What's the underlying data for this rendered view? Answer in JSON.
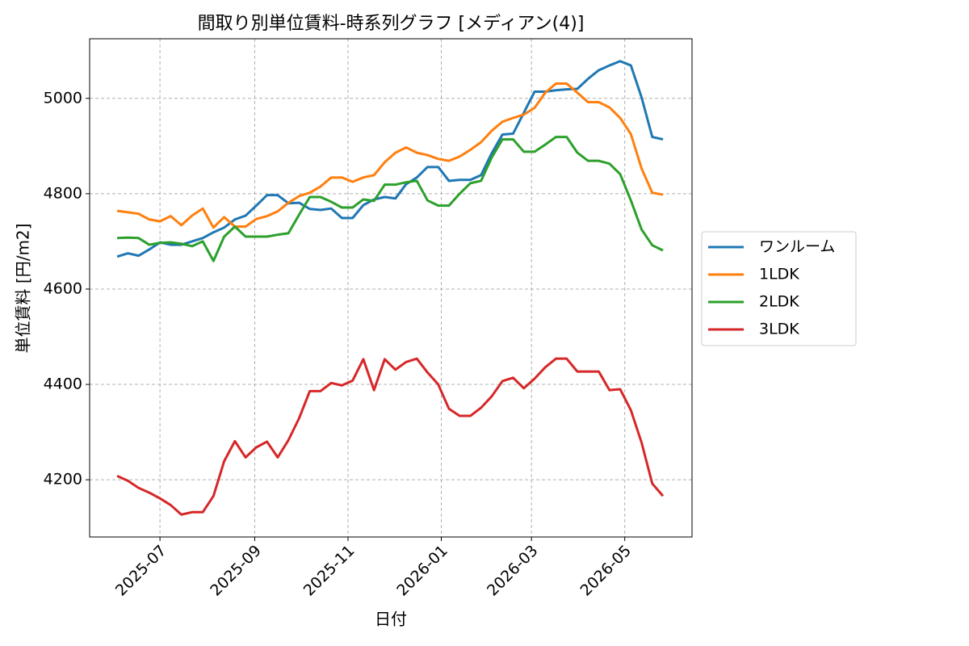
{
  "chart_data": {
    "type": "line",
    "title": "間取り別単位賃料-時系列グラフ [メディアン(4)]",
    "xlabel": "日付",
    "ylabel": "単位賃料 [円/m2]",
    "x": [
      "2025-06-03",
      "2025-06-10",
      "2025-06-17",
      "2025-06-24",
      "2025-07-01",
      "2025-07-08",
      "2025-07-15",
      "2025-07-22",
      "2025-07-29",
      "2025-08-05",
      "2025-08-12",
      "2025-08-19",
      "2025-08-26",
      "2025-09-02",
      "2025-09-09",
      "2025-09-16",
      "2025-09-23",
      "2025-09-30",
      "2025-10-07",
      "2025-10-14",
      "2025-10-21",
      "2025-10-28",
      "2025-11-04",
      "2025-11-11",
      "2025-11-18",
      "2025-11-25",
      "2025-12-02",
      "2025-12-09",
      "2025-12-16",
      "2025-12-23",
      "2025-12-30",
      "2026-01-06",
      "2026-01-13",
      "2026-01-20",
      "2026-01-27",
      "2026-02-03",
      "2026-02-10",
      "2026-02-17",
      "2026-02-24",
      "2026-03-03",
      "2026-03-10",
      "2026-03-17",
      "2026-03-24",
      "2026-03-31",
      "2026-04-07",
      "2026-04-14",
      "2026-04-21",
      "2026-04-28",
      "2026-05-05",
      "2026-05-12",
      "2026-05-19",
      "2026-05-26"
    ],
    "series": [
      {
        "name": "ワンルーム",
        "color": "#1f77b4",
        "values": [
          4668,
          4675,
          4670,
          4683,
          4698,
          4693,
          4693,
          4700,
          4707,
          4719,
          4729,
          4746,
          4754,
          4775,
          4797,
          4797,
          4780,
          4781,
          4768,
          4766,
          4769,
          4749,
          4749,
          4776,
          4788,
          4793,
          4790,
          4820,
          4834,
          4856,
          4856,
          4827,
          4829,
          4829,
          4839,
          4885,
          4924,
          4926,
          4970,
          5014,
          5014,
          5017,
          5019,
          5020,
          5041,
          5059,
          5069,
          5078,
          5069,
          5002,
          4919,
          4914
        ]
      },
      {
        "name": "1LDK",
        "color": "#ff7f0e",
        "values": [
          4764,
          4761,
          4758,
          4746,
          4742,
          4753,
          4734,
          4754,
          4769,
          4729,
          4751,
          4731,
          4731,
          4747,
          4753,
          4763,
          4781,
          4795,
          4802,
          4815,
          4834,
          4834,
          4825,
          4834,
          4839,
          4866,
          4886,
          4897,
          4886,
          4881,
          4873,
          4869,
          4878,
          4892,
          4908,
          4932,
          4951,
          4959,
          4966,
          4980,
          5012,
          5031,
          5031,
          5012,
          4992,
          4992,
          4981,
          4959,
          4925,
          4853,
          4802,
          4798
        ]
      },
      {
        "name": "2LDK",
        "color": "#2ca02c",
        "values": [
          4707,
          4708,
          4707,
          4693,
          4697,
          4698,
          4695,
          4690,
          4700,
          4659,
          4710,
          4731,
          4710,
          4710,
          4710,
          4714,
          4717,
          4756,
          4793,
          4793,
          4783,
          4771,
          4771,
          4788,
          4785,
          4819,
          4819,
          4824,
          4827,
          4786,
          4775,
          4775,
          4800,
          4822,
          4827,
          4876,
          4914,
          4914,
          4888,
          4888,
          4903,
          4919,
          4919,
          4886,
          4869,
          4869,
          4863,
          4841,
          4786,
          4725,
          4692,
          4681
        ]
      },
      {
        "name": "3LDK",
        "color": "#d62728",
        "values": [
          4208,
          4198,
          4183,
          4173,
          4161,
          4147,
          4127,
          4132,
          4132,
          4166,
          4239,
          4281,
          4247,
          4268,
          4280,
          4247,
          4283,
          4329,
          4386,
          4386,
          4403,
          4398,
          4408,
          4453,
          4388,
          4453,
          4431,
          4447,
          4454,
          4425,
          4400,
          4349,
          4334,
          4334,
          4351,
          4375,
          4407,
          4414,
          4392,
          4412,
          4436,
          4454,
          4454,
          4427,
          4427,
          4427,
          4388,
          4390,
          4346,
          4278,
          4192,
          4166
        ]
      }
    ],
    "xlim": [
      "2025-05-16",
      "2026-06-14"
    ],
    "xticks": [
      {
        "value": "2025-07-01",
        "label": "2025-07"
      },
      {
        "value": "2025-09-01",
        "label": "2025-09"
      },
      {
        "value": "2025-11-01",
        "label": "2025-11"
      },
      {
        "value": "2026-01-01",
        "label": "2026-01"
      },
      {
        "value": "2026-03-01",
        "label": "2026-03"
      },
      {
        "value": "2026-05-01",
        "label": "2026-05"
      }
    ],
    "ylim": [
      4080,
      5125
    ],
    "yticks": [
      4200,
      4400,
      4600,
      4800,
      5000
    ],
    "grid": true,
    "legend": "outside-right"
  }
}
